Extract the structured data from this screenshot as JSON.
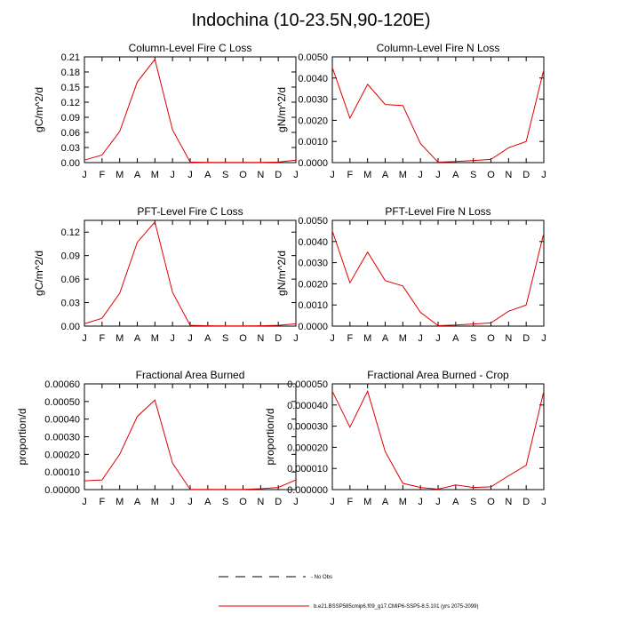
{
  "title": "Indochina (10-23.5N,90-120E)",
  "months": [
    "J",
    "F",
    "M",
    "A",
    "M",
    "J",
    "J",
    "A",
    "S",
    "O",
    "N",
    "D",
    "J"
  ],
  "legend": {
    "obs_label": "- No Obs",
    "model_label": "b.e21.BSSP585cmip6.f09_g17.CMIP6-SSP5-8.5.101 (yrs 2075-2099)",
    "obs_color": "#000000",
    "model_color": "#e00000"
  },
  "chart_data": [
    {
      "type": "line",
      "title": "Column-Level Fire C Loss",
      "ylabel": "gC/m^2/d",
      "ylim": [
        0,
        0.21
      ],
      "yticks": [
        0,
        0.03,
        0.06,
        0.09,
        0.12,
        0.15,
        0.18,
        0.21
      ],
      "ytick_labels": [
        "0.00",
        "0.03",
        "0.06",
        "0.09",
        "0.12",
        "0.15",
        "0.18",
        "0.21"
      ],
      "series": [
        {
          "values": [
            0.005,
            0.015,
            0.062,
            0.16,
            0.205,
            0.065,
            0.001,
            0.0005,
            0.0003,
            0.0003,
            0.0005,
            0.001,
            0.005
          ]
        }
      ]
    },
    {
      "type": "line",
      "title": "Column-Level Fire N Loss",
      "ylabel": "gN/m^2/d",
      "ylim": [
        0,
        0.005
      ],
      "yticks": [
        0,
        0.001,
        0.002,
        0.003,
        0.004,
        0.005
      ],
      "ytick_labels": [
        "0.0000",
        "0.0010",
        "0.0020",
        "0.0030",
        "0.0040",
        "0.0050"
      ],
      "series": [
        {
          "values": [
            0.0045,
            0.0021,
            0.0037,
            0.00275,
            0.0027,
            0.0009,
            2e-05,
            5e-05,
            0.0001,
            0.00015,
            0.0007,
            0.001,
            0.0044
          ]
        }
      ]
    },
    {
      "type": "line",
      "title": "PFT-Level Fire C Loss",
      "ylabel": "gC/m^2/d",
      "ylim": [
        0,
        0.135
      ],
      "yticks": [
        0,
        0.03,
        0.06,
        0.09,
        0.12
      ],
      "ytick_labels": [
        "0.00",
        "0.03",
        "0.06",
        "0.09",
        "0.12"
      ],
      "series": [
        {
          "values": [
            0.003,
            0.01,
            0.042,
            0.107,
            0.133,
            0.043,
            0.001,
            0.0005,
            0.0003,
            0.0003,
            0.0005,
            0.001,
            0.003
          ]
        }
      ]
    },
    {
      "type": "line",
      "title": "PFT-Level Fire N Loss",
      "ylabel": "gN/m^2/d",
      "ylim": [
        0,
        0.005
      ],
      "yticks": [
        0,
        0.001,
        0.002,
        0.003,
        0.004,
        0.005
      ],
      "ytick_labels": [
        "0.0000",
        "0.0010",
        "0.0020",
        "0.0030",
        "0.0040",
        "0.0050"
      ],
      "series": [
        {
          "values": [
            0.0045,
            0.00205,
            0.0035,
            0.00215,
            0.0019,
            0.00065,
            2e-05,
            5e-05,
            0.0001,
            0.00015,
            0.0007,
            0.001,
            0.0044
          ]
        }
      ]
    },
    {
      "type": "line",
      "title": "Fractional Area Burned",
      "ylabel": "proportion/d",
      "ylim": [
        0,
        0.0006
      ],
      "yticks": [
        0,
        0.0001,
        0.0002,
        0.0003,
        0.0004,
        0.0005,
        0.0006
      ],
      "ytick_labels": [
        "0.00000",
        "0.00010",
        "0.00020",
        "0.00030",
        "0.00040",
        "0.00050",
        "0.00060"
      ],
      "series": [
        {
          "values": [
            5e-05,
            5.5e-05,
            0.0002,
            0.000415,
            0.000508,
            0.00015,
            1e-06,
            1e-06,
            1e-06,
            1e-06,
            5e-06,
            1.2e-05,
            5.5e-05
          ]
        }
      ]
    },
    {
      "type": "line",
      "title": "Fractional Area Burned - Crop",
      "ylabel": "proportion/d",
      "ylim": [
        0,
        5e-05
      ],
      "yticks": [
        0,
        1e-05,
        2e-05,
        3e-05,
        4e-05,
        5e-05
      ],
      "ytick_labels": [
        "0.000000",
        "0.000010",
        "0.000020",
        "0.000030",
        "0.000040",
        "0.000050"
      ],
      "series": [
        {
          "values": [
            4.65e-05,
            2.95e-05,
            4.65e-05,
            1.8e-05,
            3e-06,
            1e-06,
            2e-07,
            2.2e-06,
            1e-06,
            1.3e-06,
            6.5e-06,
            1.15e-05,
            4.65e-05
          ]
        }
      ]
    }
  ]
}
